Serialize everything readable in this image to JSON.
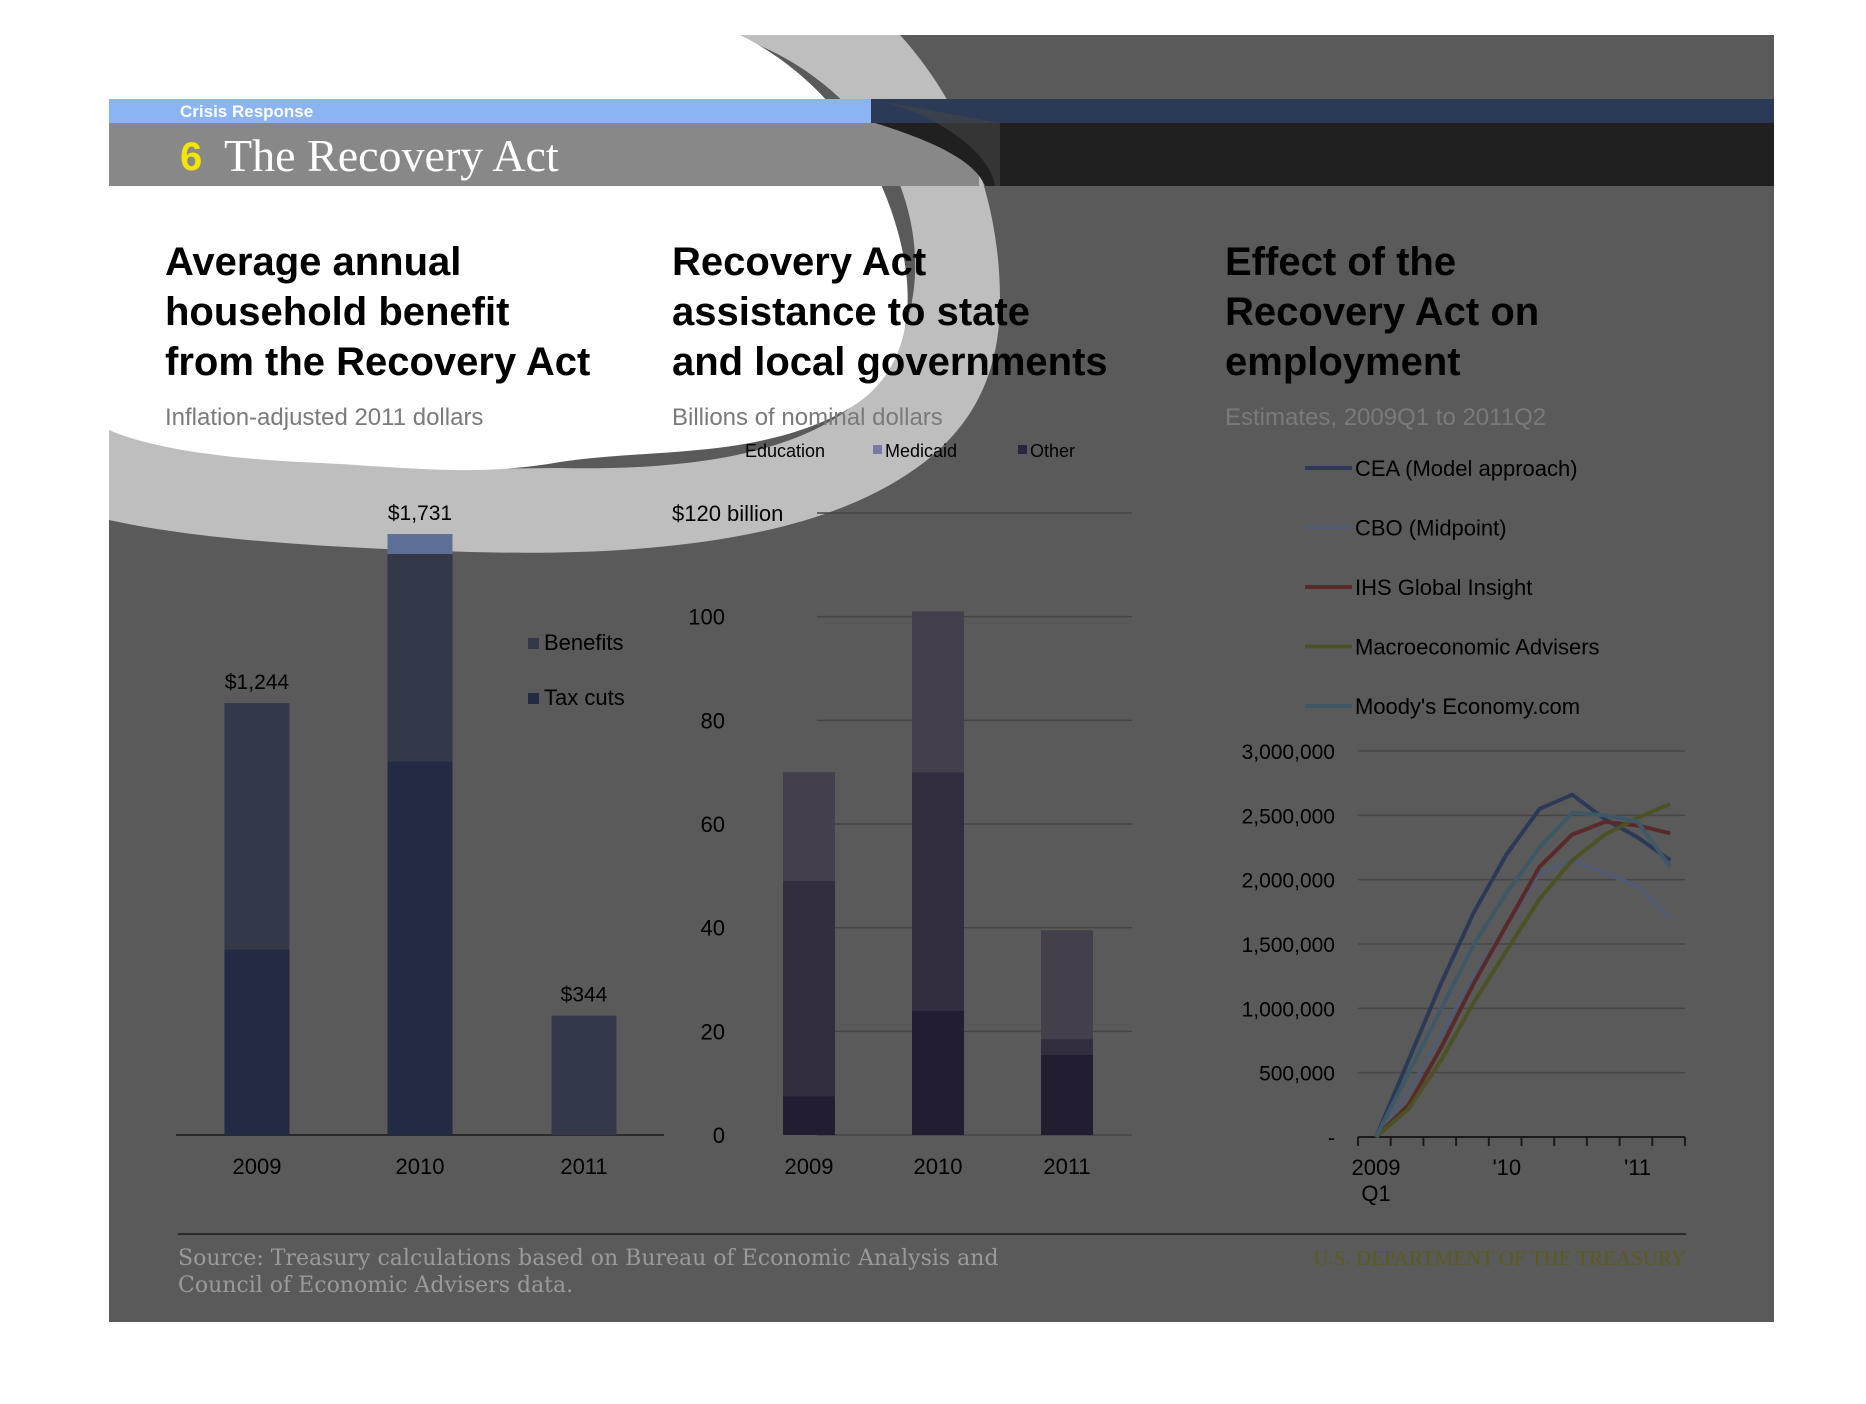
{
  "header": {
    "section": "Crisis Response",
    "number": "6",
    "title": "The Recovery Act"
  },
  "footer": {
    "source_line1": "Source: Treasury calculations based on Bureau of Economic Analysis and",
    "source_line2": "Council of Economic Advisers data.",
    "department": "U.S. DEPARTMENT OF THE TREASURY"
  },
  "colors": {
    "background": "#5a5a5a",
    "highlight_blue": "#8ab4f2",
    "title_bar": "#888888",
    "dark_bar": "#202020",
    "number_yellow": "#f2e500",
    "department_olive": "#5c5a1e"
  },
  "chart_data": [
    {
      "type": "bar",
      "stacked": true,
      "title_lines": [
        "Average annual",
        "household benefit",
        "from the Recovery Act"
      ],
      "subtitle": "Inflation-adjusted 2011 dollars",
      "categories": [
        "2009",
        "2010",
        "2011"
      ],
      "series": [
        {
          "name": "Tax cuts",
          "values": [
            535,
            1076,
            0
          ],
          "color": "#232a44"
        },
        {
          "name": "Benefits",
          "values": [
            709,
            655,
            344
          ],
          "color": "#333949"
        }
      ],
      "totals": [
        1244,
        1731,
        344
      ],
      "total_labels": [
        "$1,244",
        "$1,731",
        "$344"
      ],
      "ylim": [
        0,
        1731
      ],
      "legend": [
        "Benefits",
        "Tax cuts"
      ]
    },
    {
      "type": "bar",
      "stacked": true,
      "title_lines": [
        "Recovery Act",
        "assistance to state",
        "and local governments"
      ],
      "subtitle": "Billions of nominal dollars",
      "categories": [
        "2009",
        "2010",
        "2011"
      ],
      "series": [
        {
          "name": "Other",
          "values": [
            7.5,
            24,
            15.5
          ],
          "color": "#221d30"
        },
        {
          "name": "Medicaid",
          "values": [
            41.5,
            46,
            3
          ],
          "color": "#322d3f"
        },
        {
          "name": "Education",
          "values": [
            21,
            31,
            21
          ],
          "color": "#433f4b"
        }
      ],
      "legend": [
        "Education",
        "Medicaid",
        "Other"
      ],
      "legend_colors": [
        "#8a86b0",
        "#7a78a6",
        "#2a2540"
      ],
      "ylim": [
        0,
        120
      ],
      "yticks": [
        0,
        20,
        40,
        60,
        80,
        100,
        120
      ],
      "ytick_labels": [
        "0",
        "20",
        "40",
        "60",
        "80",
        "100",
        "$120 billion"
      ]
    },
    {
      "type": "line",
      "title_lines": [
        "Effect of the",
        "Recovery Act on",
        "employment"
      ],
      "subtitle": "Estimates, 2009Q1 to 2011Q2",
      "x": [
        "2009Q1",
        "2009Q2",
        "2009Q3",
        "2009Q4",
        "2010Q1",
        "2010Q2",
        "2010Q3",
        "2010Q4",
        "2011Q1",
        "2011Q2"
      ],
      "xtick_labels": [
        {
          "text": "2009",
          "sub": "Q1",
          "index": 0
        },
        {
          "text": "'10",
          "sub": "",
          "index": 4
        },
        {
          "text": "'11",
          "sub": "",
          "index": 8
        }
      ],
      "ylim": [
        0,
        3000000
      ],
      "yticks": [
        0,
        500000,
        1000000,
        1500000,
        2000000,
        2500000,
        3000000
      ],
      "ytick_labels": [
        "-",
        "500,000",
        "1,000,000",
        "1,500,000",
        "2,000,000",
        "2,500,000",
        "3,000,000"
      ],
      "series": [
        {
          "name": "CEA (Model approach)",
          "color": "#2c3a58",
          "values": [
            0,
            600000,
            1200000,
            1750000,
            2200000,
            2550000,
            2660000,
            2470000,
            2330000,
            2150000
          ]
        },
        {
          "name": "CBO (Midpoint)",
          "color": "#505a70",
          "values": [
            0,
            350000,
            800000,
            1250000,
            1650000,
            2050000,
            2150000,
            2050000,
            1950000,
            1700000
          ]
        },
        {
          "name": "IHS Global Insight",
          "color": "#5a2a2a",
          "values": [
            0,
            250000,
            700000,
            1200000,
            1650000,
            2100000,
            2350000,
            2450000,
            2420000,
            2360000
          ]
        },
        {
          "name": "Macroeconomic Advisers",
          "color": "#4c5226",
          "values": [
            0,
            220000,
            600000,
            1050000,
            1450000,
            1850000,
            2150000,
            2350000,
            2480000,
            2590000
          ]
        },
        {
          "name": "Moody's Economy.com",
          "color": "#3e5868",
          "values": [
            0,
            500000,
            1000000,
            1500000,
            1900000,
            2250000,
            2520000,
            2500000,
            2450000,
            2100000
          ]
        }
      ]
    }
  ]
}
